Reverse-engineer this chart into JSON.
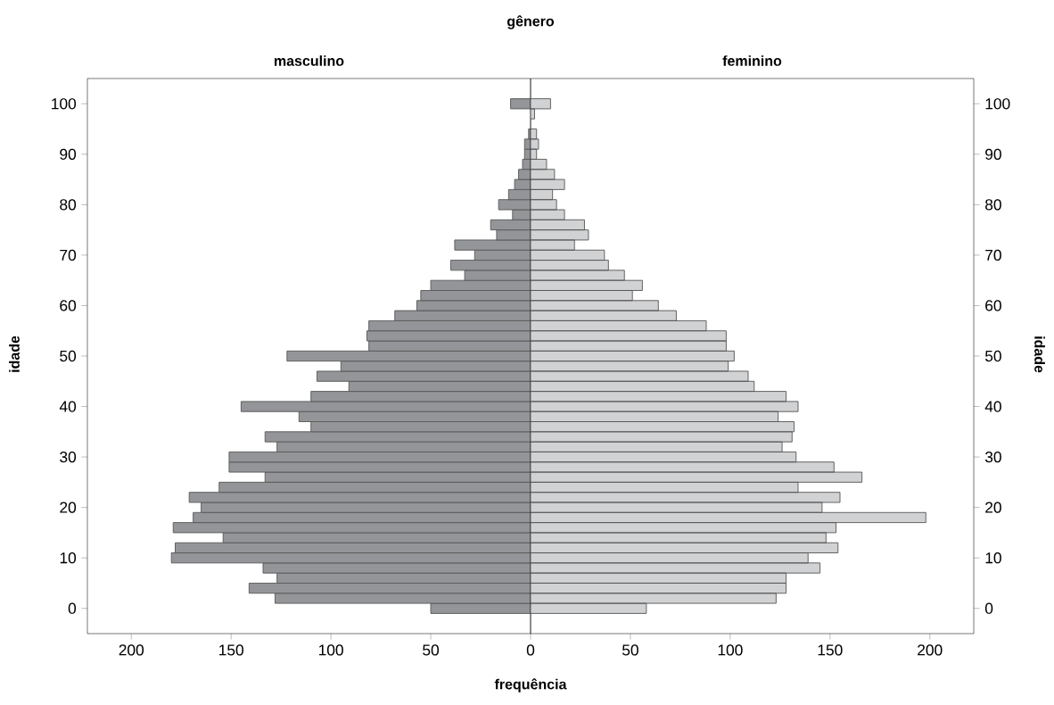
{
  "chart_data": [
    {
      "type": "bar",
      "orientation": "horizontal",
      "title": "gênero",
      "subtitle": "masculino",
      "xlabel": "frequência",
      "ylabel": "idade",
      "x": [
        0,
        2,
        4,
        6,
        8,
        10,
        12,
        14,
        16,
        18,
        20,
        22,
        24,
        26,
        28,
        30,
        32,
        34,
        36,
        38,
        40,
        42,
        44,
        46,
        48,
        50,
        52,
        54,
        56,
        58,
        60,
        62,
        64,
        66,
        68,
        70,
        72,
        74,
        76,
        78,
        80,
        82,
        84,
        86,
        88,
        90,
        92,
        94,
        96,
        98,
        100
      ],
      "values": [
        50,
        128,
        141,
        127,
        134,
        180,
        178,
        154,
        179,
        169,
        165,
        171,
        156,
        133,
        151,
        151,
        127,
        133,
        110,
        116,
        145,
        110,
        91,
        107,
        95,
        122,
        81,
        82,
        81,
        68,
        57,
        55,
        50,
        33,
        40,
        28,
        38,
        17,
        20,
        9,
        16,
        11,
        8,
        6,
        4,
        3,
        3,
        1,
        0,
        0,
        10
      ],
      "color": "#939598",
      "xlim": [
        222,
        0
      ],
      "xticks": [
        50,
        100,
        150,
        200
      ],
      "ylim": [
        -5,
        105
      ],
      "yticks": [
        0,
        10,
        20,
        30,
        40,
        50,
        60,
        70,
        80,
        90,
        100
      ]
    },
    {
      "type": "bar",
      "orientation": "horizontal",
      "subtitle": "feminino",
      "ylabel": "idade",
      "x": [
        0,
        2,
        4,
        6,
        8,
        10,
        12,
        14,
        16,
        18,
        20,
        22,
        24,
        26,
        28,
        30,
        32,
        34,
        36,
        38,
        40,
        42,
        44,
        46,
        48,
        50,
        52,
        54,
        56,
        58,
        60,
        62,
        64,
        66,
        68,
        70,
        72,
        74,
        76,
        78,
        80,
        82,
        84,
        86,
        88,
        90,
        92,
        94,
        96,
        98,
        100
      ],
      "values": [
        58,
        123,
        128,
        128,
        145,
        139,
        154,
        148,
        153,
        198,
        146,
        155,
        134,
        166,
        152,
        133,
        126,
        131,
        132,
        124,
        134,
        128,
        112,
        109,
        99,
        102,
        98,
        98,
        88,
        73,
        64,
        51,
        56,
        47,
        39,
        37,
        22,
        29,
        27,
        17,
        13,
        11,
        17,
        12,
        8,
        3,
        4,
        3,
        0,
        2,
        10
      ],
      "color": "#d1d2d4",
      "xlim": [
        0,
        222
      ],
      "xticks": [
        0,
        50,
        100,
        150,
        200
      ],
      "ylim": [
        -5,
        105
      ],
      "yticks": [
        0,
        10,
        20,
        30,
        40,
        50,
        60,
        70,
        80,
        90,
        100
      ]
    }
  ]
}
